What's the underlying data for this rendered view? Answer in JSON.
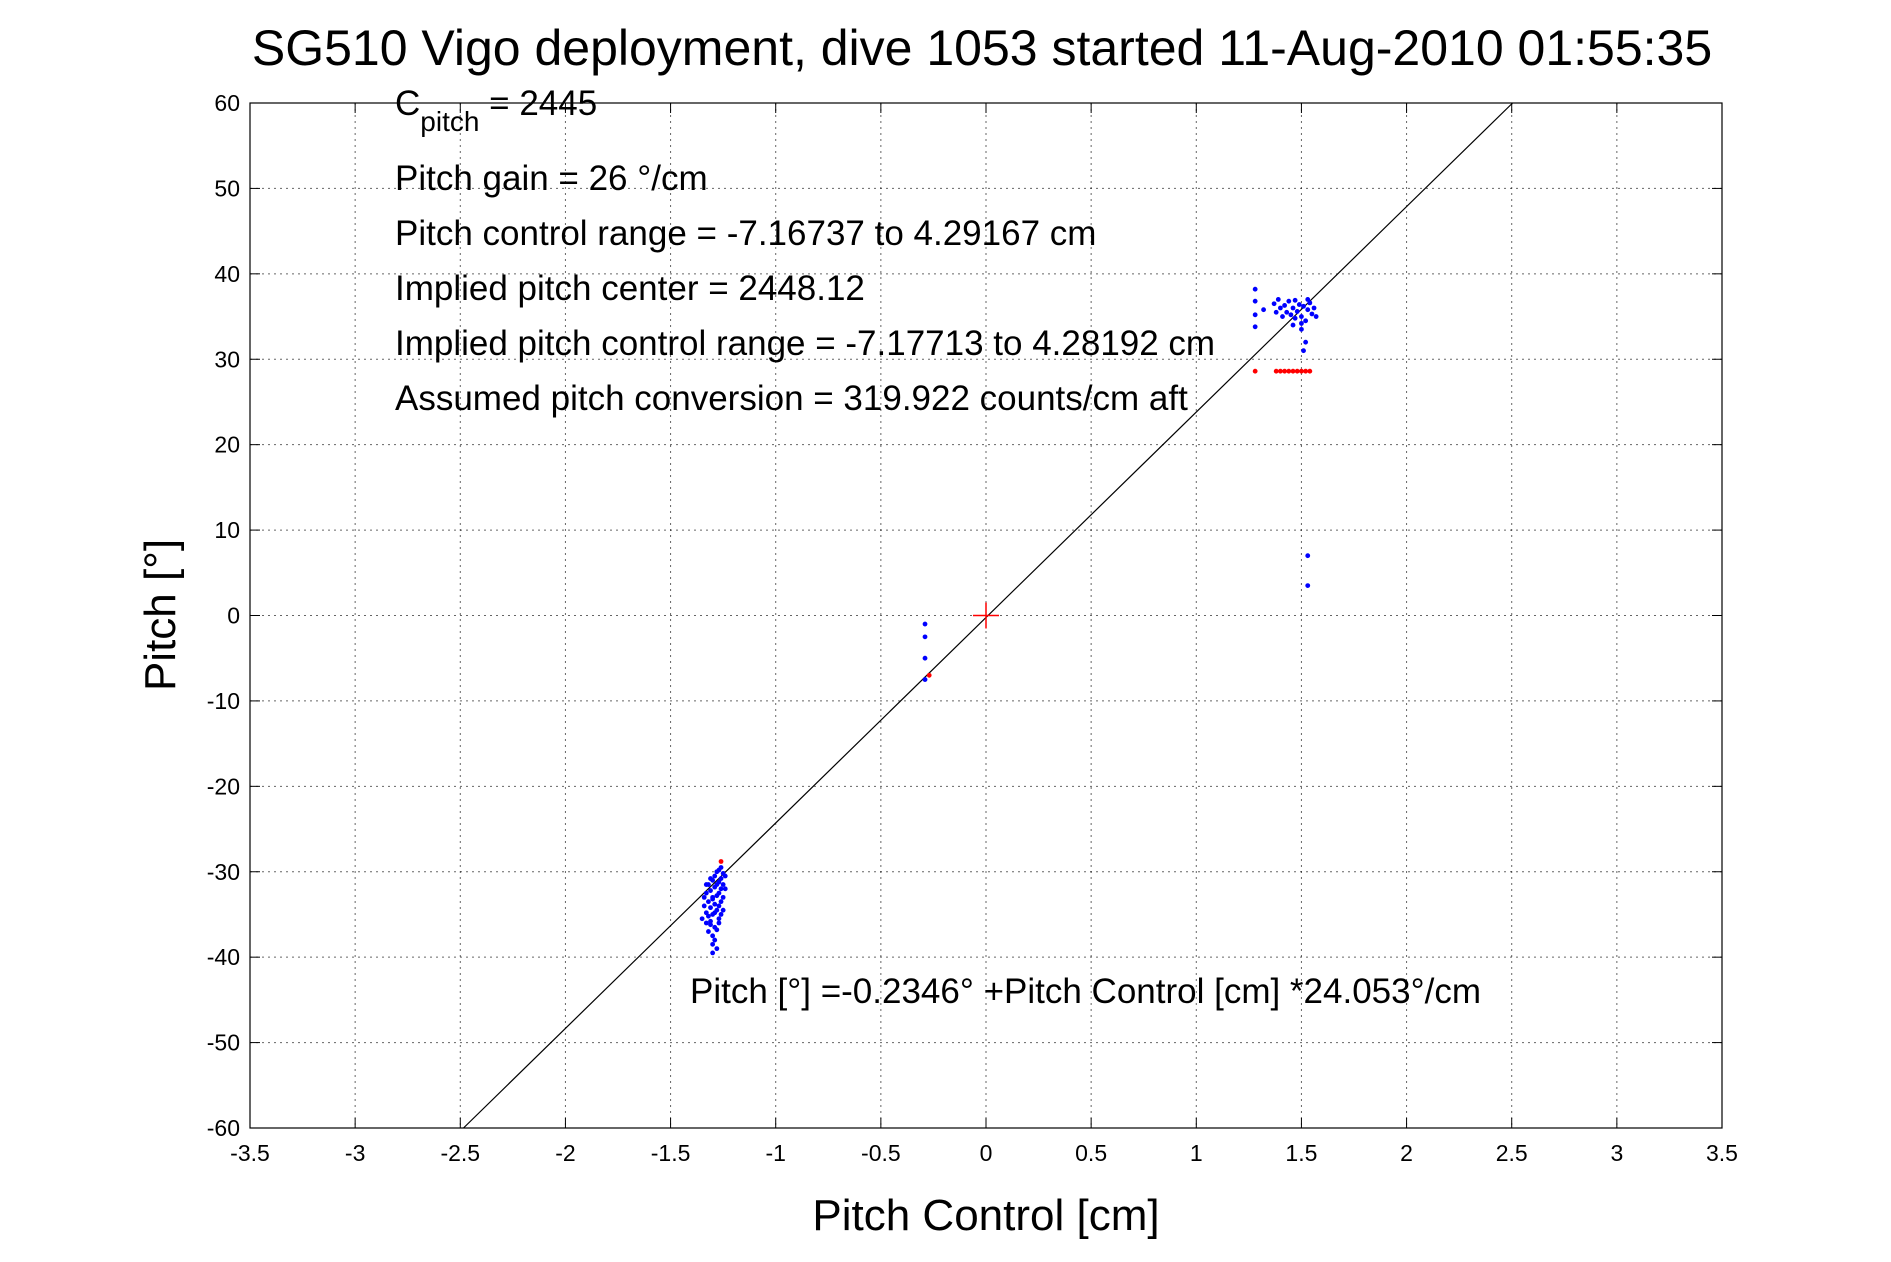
{
  "chart_data": {
    "type": "scatter",
    "title": "SG510 Vigo deployment, dive 1053 started 11-Aug-2010 01:55:35",
    "xlabel": "Pitch Control [cm]",
    "ylabel": "Pitch [°]",
    "xlim": [
      -3.5,
      3.5
    ],
    "ylim": [
      -60,
      60
    ],
    "xticks": [
      -3.5,
      -3,
      -2.5,
      -2,
      -1.5,
      -1,
      -0.5,
      0,
      0.5,
      1,
      1.5,
      2,
      2.5,
      3,
      3.5
    ],
    "xtick_labels": [
      "-3.5",
      "-3",
      "-2.5",
      "-2",
      "-1.5",
      "-1",
      "-0.5",
      "0",
      "0.5",
      "1",
      "1.5",
      "2",
      "2.5",
      "3",
      "3.5"
    ],
    "yticks": [
      -60,
      -50,
      -40,
      -30,
      -20,
      -10,
      0,
      10,
      20,
      30,
      40,
      50,
      60
    ],
    "ytick_labels": [
      "-60",
      "-50",
      "-40",
      "-30",
      "-20",
      "-10",
      "0",
      "10",
      "20",
      "30",
      "40",
      "50",
      "60"
    ],
    "grid": true,
    "annotations": {
      "cpitch_main": "C",
      "cpitch_sub": "pitch",
      "cpitch_value": " = 2445",
      "lines": [
        "Pitch gain = 26 °/cm",
        "Pitch control range = -7.16737 to 4.29167 cm",
        "Implied pitch center = 2448.12",
        "Implied pitch control range = -7.17713 to 4.28192 cm",
        "Assumed pitch conversion = 319.922 counts/cm aft"
      ],
      "fit_equation": "Pitch [°] =-0.2346° +Pitch Control [cm] *24.053°/cm"
    },
    "fit_line": {
      "intercept": -0.2346,
      "slope": 24.053,
      "color": "#000000"
    },
    "center_marker": {
      "x": 0,
      "y": 0,
      "color": "#ff0000"
    },
    "series": [
      {
        "color": "#0000ff",
        "points": [
          [
            -1.35,
            -35.5
          ],
          [
            -1.34,
            -34.0
          ],
          [
            -1.34,
            -33.0
          ],
          [
            -1.33,
            -32.5
          ],
          [
            -1.33,
            -36.0
          ],
          [
            -1.33,
            -34.8
          ],
          [
            -1.32,
            -31.5
          ],
          [
            -1.32,
            -33.5
          ],
          [
            -1.32,
            -35.2
          ],
          [
            -1.32,
            -37.0
          ],
          [
            -1.31,
            -30.8
          ],
          [
            -1.31,
            -32.2
          ],
          [
            -1.31,
            -34.2
          ],
          [
            -1.31,
            -36.2
          ],
          [
            -1.3,
            -31.0
          ],
          [
            -1.3,
            -33.0
          ],
          [
            -1.3,
            -35.0
          ],
          [
            -1.3,
            -37.5
          ],
          [
            -1.3,
            -38.5
          ],
          [
            -1.3,
            -39.5
          ],
          [
            -1.29,
            -30.5
          ],
          [
            -1.29,
            -31.8
          ],
          [
            -1.29,
            -33.8
          ],
          [
            -1.29,
            -36.5
          ],
          [
            -1.29,
            -38.0
          ],
          [
            -1.28,
            -30.0
          ],
          [
            -1.28,
            -31.5
          ],
          [
            -1.28,
            -32.8
          ],
          [
            -1.28,
            -34.5
          ],
          [
            -1.28,
            -36.8
          ],
          [
            -1.28,
            -39.0
          ],
          [
            -1.27,
            -29.8
          ],
          [
            -1.27,
            -31.2
          ],
          [
            -1.27,
            -32.5
          ],
          [
            -1.27,
            -34.0
          ],
          [
            -1.27,
            -35.5
          ],
          [
            -1.26,
            -29.5
          ],
          [
            -1.26,
            -30.8
          ],
          [
            -1.26,
            -32.0
          ],
          [
            -1.26,
            -33.5
          ],
          [
            -1.26,
            -35.0
          ],
          [
            -1.25,
            -30.2
          ],
          [
            -1.25,
            -31.5
          ],
          [
            -1.25,
            -33.0
          ],
          [
            -1.25,
            -34.5
          ],
          [
            -1.24,
            -30.5
          ],
          [
            -1.24,
            -32.0
          ],
          [
            -1.3,
            -33.2
          ],
          [
            -1.31,
            -35.8
          ],
          [
            -1.27,
            -36.0
          ],
          [
            -1.29,
            -34.8
          ],
          [
            -1.33,
            -31.5
          ],
          [
            -0.29,
            -1.0
          ],
          [
            -0.29,
            -2.5
          ],
          [
            -0.29,
            -5.0
          ],
          [
            -0.29,
            -7.5
          ],
          [
            1.28,
            38.2
          ],
          [
            1.28,
            36.8
          ],
          [
            1.28,
            35.2
          ],
          [
            1.28,
            33.8
          ],
          [
            1.32,
            35.8
          ],
          [
            1.37,
            36.5
          ],
          [
            1.38,
            35.5
          ],
          [
            1.39,
            37.0
          ],
          [
            1.4,
            36.0
          ],
          [
            1.41,
            35.0
          ],
          [
            1.42,
            36.3
          ],
          [
            1.43,
            35.5
          ],
          [
            1.44,
            36.8
          ],
          [
            1.45,
            35.2
          ],
          [
            1.46,
            36.0
          ],
          [
            1.47,
            34.8
          ],
          [
            1.48,
            35.6
          ],
          [
            1.49,
            36.4
          ],
          [
            1.5,
            35.0
          ],
          [
            1.51,
            36.2
          ],
          [
            1.52,
            34.5
          ],
          [
            1.53,
            35.8
          ],
          [
            1.54,
            36.6
          ],
          [
            1.55,
            35.3
          ],
          [
            1.56,
            36.0
          ],
          [
            1.57,
            35.0
          ],
          [
            1.5,
            33.5
          ],
          [
            1.52,
            32.0
          ],
          [
            1.51,
            31.0
          ],
          [
            1.5,
            34.2
          ],
          [
            1.46,
            34.0
          ],
          [
            1.53,
            37.0
          ],
          [
            1.47,
            36.9
          ],
          [
            1.53,
            7.0
          ],
          [
            1.53,
            3.5
          ]
        ]
      },
      {
        "color": "#ff0000",
        "points": [
          [
            1.28,
            28.6
          ],
          [
            1.38,
            28.6
          ],
          [
            1.4,
            28.6
          ],
          [
            1.42,
            28.6
          ],
          [
            1.44,
            28.6
          ],
          [
            1.46,
            28.6
          ],
          [
            1.48,
            28.6
          ],
          [
            1.5,
            28.6
          ],
          [
            1.52,
            28.6
          ],
          [
            1.54,
            28.6
          ],
          [
            -1.26,
            -28.8
          ],
          [
            -0.27,
            -7.0
          ]
        ]
      }
    ]
  }
}
